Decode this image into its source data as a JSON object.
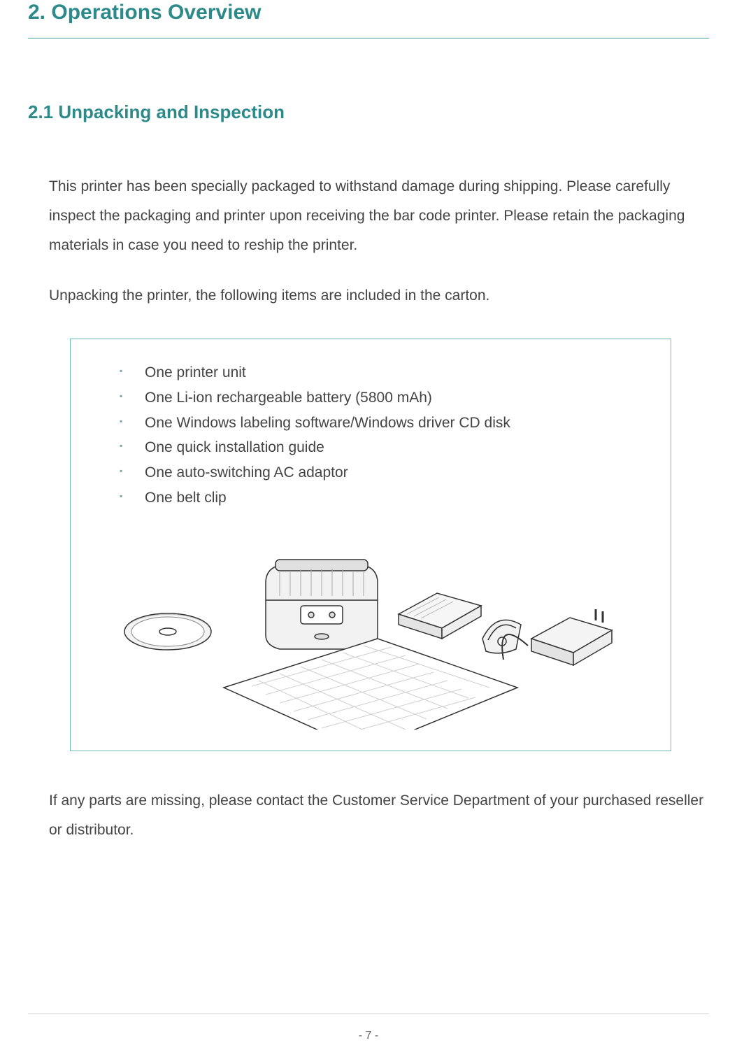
{
  "colors": {
    "heading_teal": "#2d8a8a",
    "rule_teal": "#3d9a9a",
    "body_text": "#444444",
    "box_border": "#6bbcbc",
    "bullet": "#7aa5a5",
    "footer_rule": "#cfcfcf",
    "page_number": "#666666",
    "illustration_stroke": "#333333",
    "illustration_fill_light": "#f4f4f4",
    "illustration_fill_mid": "#e0e0e0"
  },
  "chapter": {
    "title": "2. Operations Overview"
  },
  "section": {
    "title": "2.1 Unpacking and Inspection"
  },
  "paragraphs": {
    "intro": "This printer has been specially packaged to withstand damage during shipping. Please carefully inspect the packaging and printer upon receiving the bar code printer. Please retain the packaging materials in case you need to reship the printer.",
    "unpack_lead": "Unpacking the printer, the following items are included in the carton.",
    "missing": "If any parts are missing, please contact the Customer Service Department of your purchased reseller or distributor."
  },
  "carton_items": [
    "One printer unit",
    "One Li-ion rechargeable battery (5800 mAh)",
    "One Windows labeling software/Windows driver CD disk",
    "One quick installation guide",
    "One auto-switching AC adaptor",
    "One belt clip"
  ],
  "page_number": "- 7 -",
  "typography": {
    "chapter_fontsize": 30,
    "section_fontsize": 26,
    "body_fontsize": 21,
    "body_lineheight": 2.0,
    "list_fontsize": 21
  }
}
